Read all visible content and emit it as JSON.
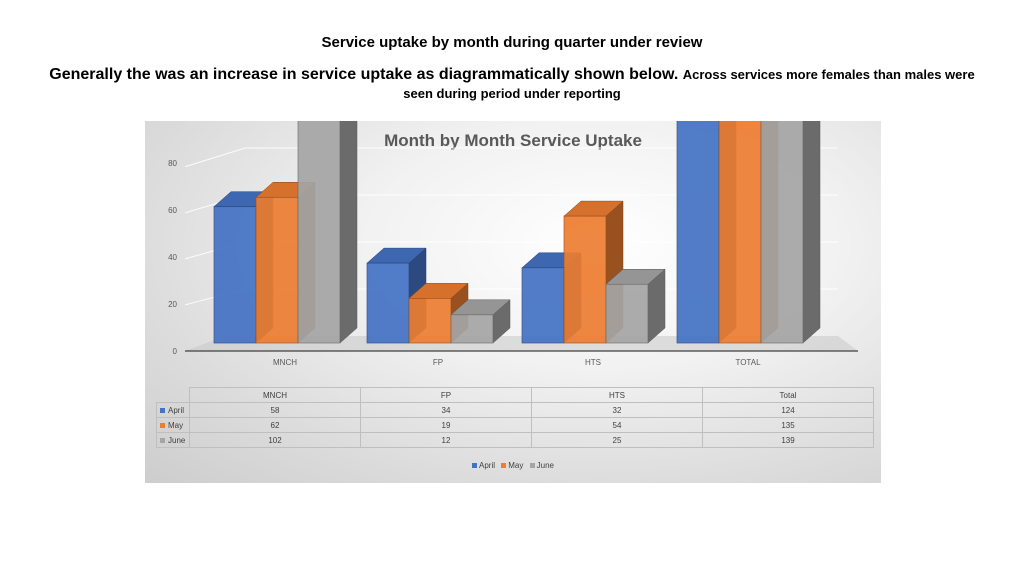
{
  "heading": "Service uptake by month during quarter under review",
  "summary_part1": "Generally the was an increase in service uptake as diagrammatically shown below.",
  "summary_part2": "Across services more females than males were seen during period under reporting",
  "chart_data": {
    "type": "bar",
    "title": "Month by Month Service Uptake",
    "categories": [
      "MNCH",
      "FP",
      "HTS",
      "TOTAL"
    ],
    "table_columns": [
      "MNCH",
      "FP",
      "HTS",
      "Total"
    ],
    "series": [
      {
        "name": "April",
        "values": [
          58,
          34,
          32,
          124
        ],
        "color": "#4472C4"
      },
      {
        "name": "May",
        "values": [
          62,
          19,
          54,
          135
        ],
        "color": "#ED7D31"
      },
      {
        "name": "June",
        "values": [
          102,
          12,
          25,
          139
        ],
        "color": "#A5A5A5"
      }
    ],
    "ylim": [
      0,
      140
    ],
    "yticks": [
      0,
      20,
      40,
      60,
      80,
      100,
      120,
      140
    ],
    "grid": true,
    "legend_position": "bottom",
    "data_table": true,
    "style": "3d-clustered-column"
  }
}
